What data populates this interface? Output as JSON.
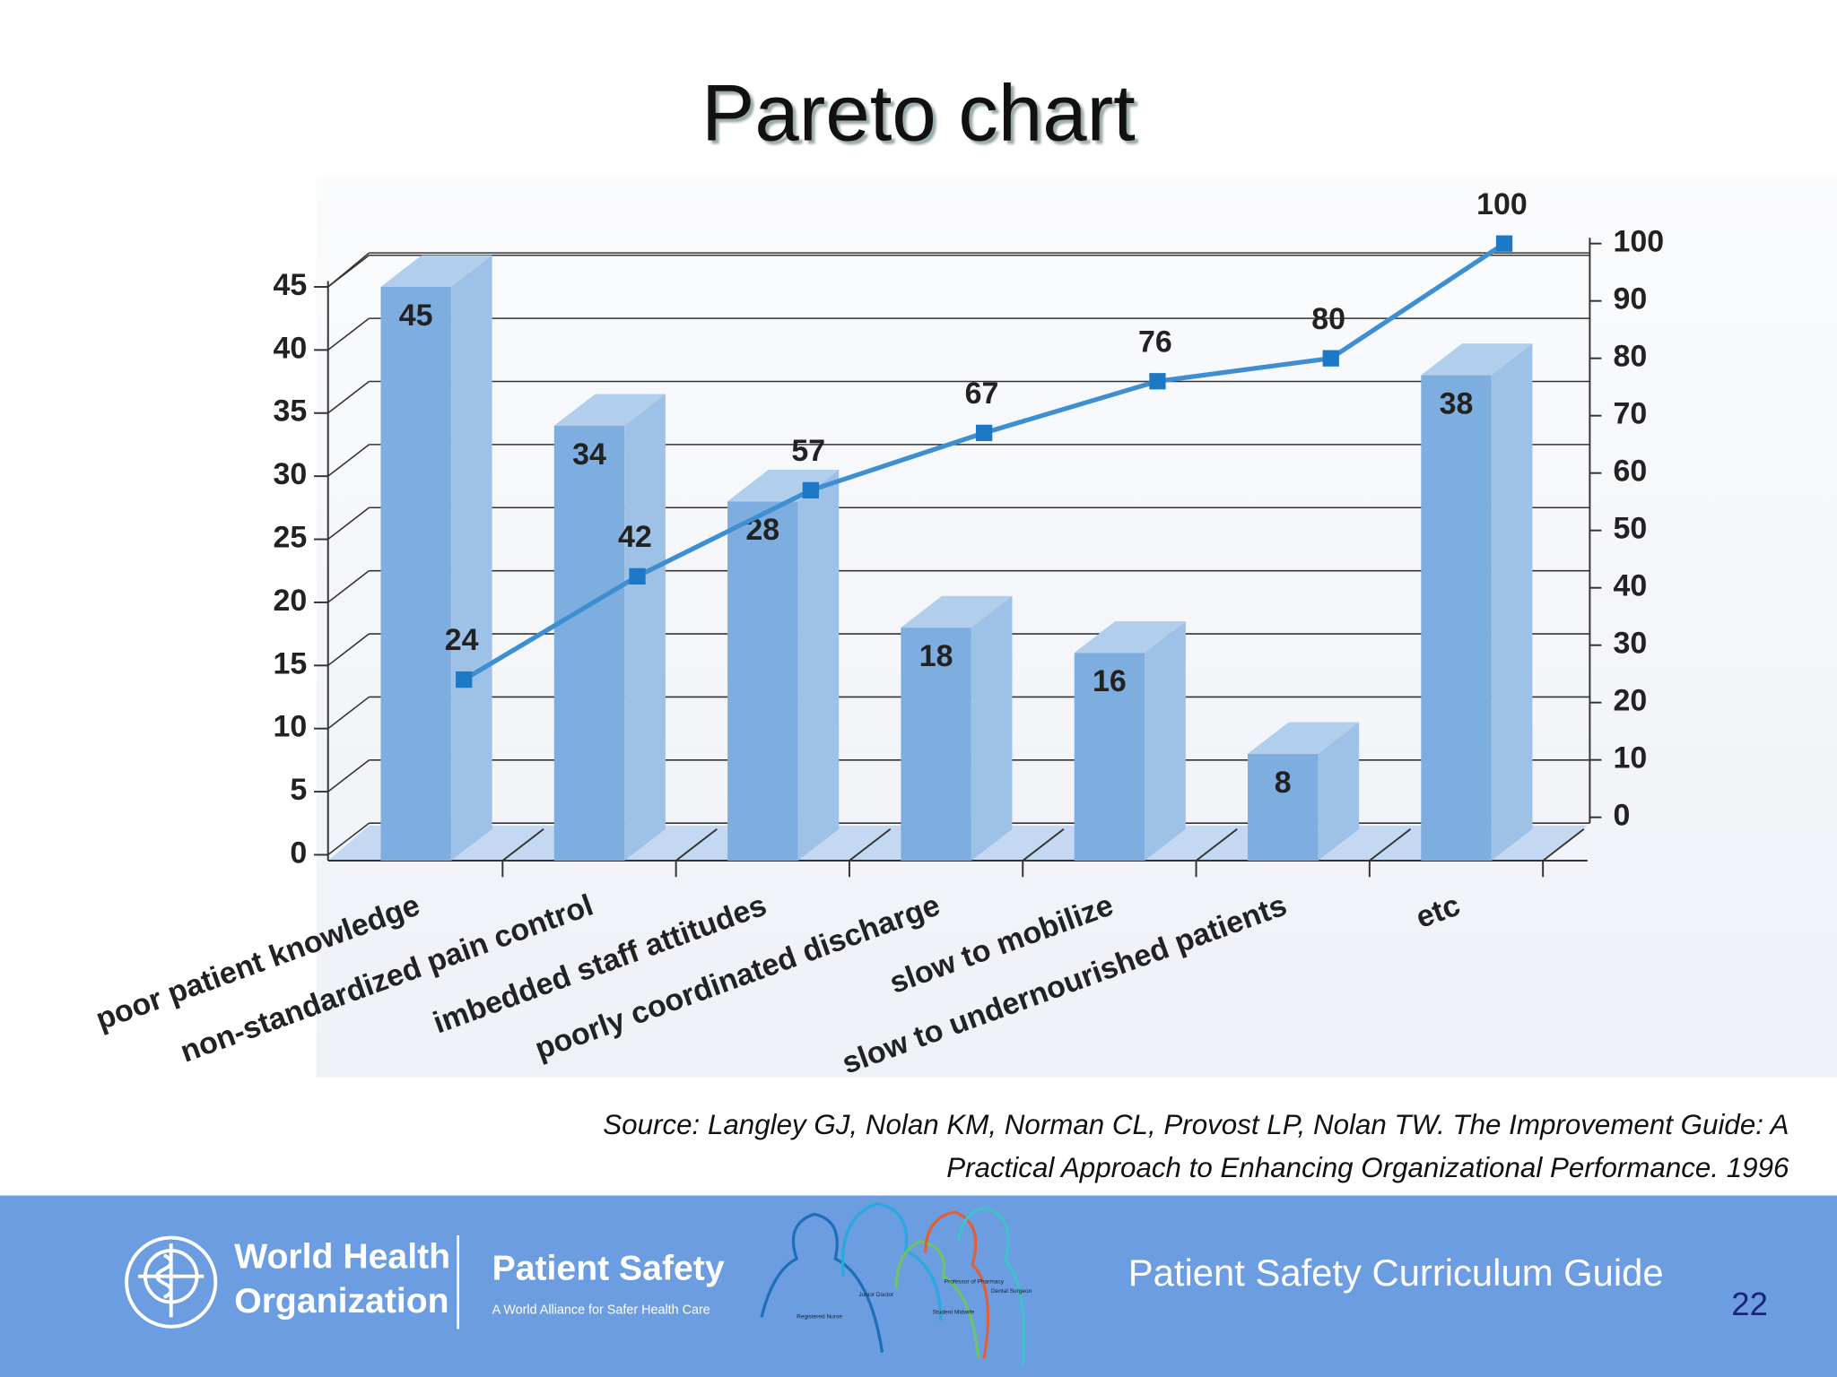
{
  "chart_data": {
    "type": "pareto",
    "title": "Pareto chart",
    "categories": [
      "poor patient knowledge",
      "non-standardized pain control",
      "imbedded staff attitudes",
      "poorly coordinated discharge",
      "slow to mobilize",
      "slow to undernourished patients",
      "etc"
    ],
    "series": [
      {
        "color": "#7eaddf",
        "values": [
          45,
          34,
          28,
          18,
          16,
          8,
          38
        ]
      },
      {
        "color": "#3d8fd2",
        "values": [
          24,
          42,
          57,
          67,
          76,
          80,
          100
        ],
        "axis": "y2"
      }
    ],
    "ylim": [
      0,
      45
    ],
    "yticks": [
      0,
      5,
      10,
      15,
      20,
      25,
      30,
      35,
      40,
      45
    ],
    "y2lim": [
      0,
      100
    ],
    "y2ticks": [
      0,
      10,
      20,
      30,
      40,
      50,
      60,
      70,
      80,
      90,
      100
    ],
    "grid": true
  },
  "source": {
    "lines": [
      "Source: Langley GJ, Nolan KM, Norman CL, Provost LP, Nolan TW. The Improvement Guide: A",
      "Practical Approach to Enhancing Organizational Performance. 1996"
    ]
  },
  "footer": {
    "who": [
      "World Health",
      "Organization"
    ],
    "program": "Patient Safety",
    "tagline": "A World Alliance for Safer Health Care",
    "figures": [
      "Registered Nurse",
      "Junior Doctor",
      "Professor of Pharmacy",
      "Dental Surgeon",
      "Student Midwife"
    ],
    "guide": "Patient Safety Curriculum Guide",
    "page": "22"
  }
}
